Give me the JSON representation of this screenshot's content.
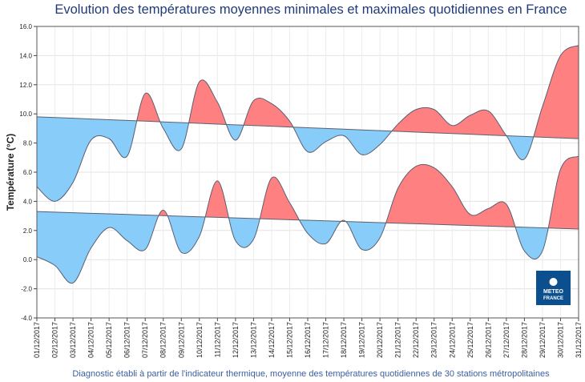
{
  "chart_data": {
    "type": "line",
    "title": "Evolution des températures moyennes minimales et maximales quotidiennes en France",
    "y_label": "Température (°C)",
    "footnote": "Diagnostic établi à partir de l'indicateur thermique, moyenne des températures quotidiennes de 30 stations métropolitaines",
    "logo": [
      "METEO",
      "FRANCE"
    ],
    "x": [
      "01/12/2017",
      "02/12/2017",
      "03/12/2017",
      "04/12/2017",
      "05/12/2017",
      "06/12/2017",
      "07/12/2017",
      "08/12/2017",
      "09/12/2017",
      "10/12/2017",
      "11/12/2017",
      "12/12/2017",
      "13/12/2017",
      "14/12/2017",
      "15/12/2017",
      "16/12/2017",
      "17/12/2017",
      "18/12/2017",
      "19/12/2017",
      "20/12/2017",
      "21/12/2017",
      "22/12/2017",
      "23/12/2017",
      "24/12/2017",
      "25/12/2017",
      "26/12/2017",
      "27/12/2017",
      "28/12/2017",
      "29/12/2017",
      "30/12/2017",
      "31/12/2017"
    ],
    "series": [
      {
        "values": [
          5.0,
          4.0,
          5.3,
          8.2,
          8.3,
          7.1,
          11.4,
          9.0,
          7.6,
          12.2,
          10.8,
          8.2,
          10.9,
          10.7,
          9.5,
          7.4,
          8.1,
          8.5,
          7.2,
          7.9,
          9.3,
          10.3,
          10.3,
          9.2,
          9.9,
          10.2,
          8.5,
          6.9,
          10.5,
          14.0,
          14.7
        ],
        "normal": [
          9.8,
          9.75,
          9.7,
          9.65,
          9.6,
          9.55,
          9.5,
          9.45,
          9.4,
          9.35,
          9.3,
          9.25,
          9.2,
          9.15,
          9.1,
          9.05,
          9.0,
          8.95,
          8.9,
          8.85,
          8.8,
          8.75,
          8.7,
          8.65,
          8.6,
          8.55,
          8.5,
          8.45,
          8.4,
          8.35,
          8.3
        ]
      },
      {
        "values": [
          0.2,
          -0.4,
          -1.6,
          0.8,
          2.2,
          1.3,
          0.7,
          3.4,
          0.5,
          1.6,
          5.4,
          1.3,
          1.4,
          5.6,
          3.9,
          1.8,
          1.1,
          2.7,
          0.7,
          1.5,
          4.9,
          6.4,
          6.3,
          5.0,
          3.1,
          3.5,
          3.8,
          0.6,
          0.6,
          6.2,
          7.1
        ],
        "normal": [
          3.3,
          3.26,
          3.22,
          3.18,
          3.14,
          3.1,
          3.06,
          3.02,
          2.98,
          2.94,
          2.9,
          2.86,
          2.82,
          2.78,
          2.74,
          2.7,
          2.66,
          2.62,
          2.58,
          2.54,
          2.5,
          2.46,
          2.42,
          2.38,
          2.34,
          2.3,
          2.26,
          2.22,
          2.18,
          2.14,
          2.1
        ]
      }
    ],
    "above_color": "#ff8080",
    "below_color": "#88ccfa",
    "line_color": "#5a5f70",
    "ylim": [
      -4,
      16
    ],
    "yticks": [
      {
        "value": -4,
        "label": "-4.0"
      },
      {
        "value": -2,
        "label": "-2.0"
      },
      {
        "value": 0,
        "label": "0.0"
      },
      {
        "value": 2,
        "label": "2.0"
      },
      {
        "value": 4,
        "label": "4.0"
      },
      {
        "value": 6,
        "label": "6.0"
      },
      {
        "value": 8,
        "label": "8.0"
      },
      {
        "value": 10,
        "label": "10.0"
      },
      {
        "value": 12,
        "label": "12.0"
      },
      {
        "value": 14,
        "label": "14.0"
      },
      {
        "value": 16,
        "label": "16.0"
      }
    ],
    "grid": true
  }
}
